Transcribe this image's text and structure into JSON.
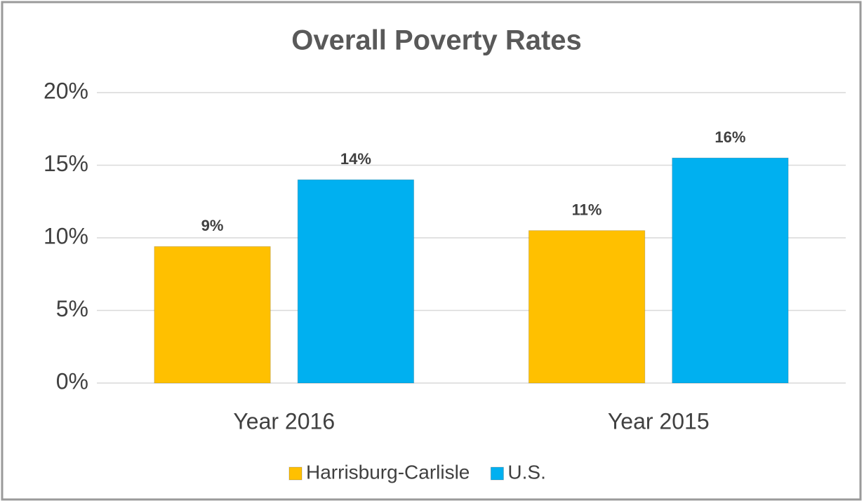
{
  "chart_data": {
    "type": "bar",
    "title": "Overall Poverty Rates",
    "categories": [
      "Year 2016",
      "Year 2015"
    ],
    "series": [
      {
        "name": "Harrisburg-Carlisle",
        "color": "#ffc000",
        "values": [
          9.4,
          10.5
        ],
        "value_labels": [
          "9%",
          "11%"
        ]
      },
      {
        "name": "U.S.",
        "color": "#00b0f0",
        "values": [
          14.0,
          15.5
        ],
        "value_labels": [
          "14%",
          "16%"
        ]
      }
    ],
    "ylim": [
      0,
      20
    ],
    "yticks": [
      {
        "value": 0,
        "label": "0%"
      },
      {
        "value": 5,
        "label": "5%"
      },
      {
        "value": 10,
        "label": "10%"
      },
      {
        "value": 15,
        "label": "15%"
      },
      {
        "value": 20,
        "label": "20%"
      }
    ],
    "grid": true,
    "legend": "bottom"
  }
}
